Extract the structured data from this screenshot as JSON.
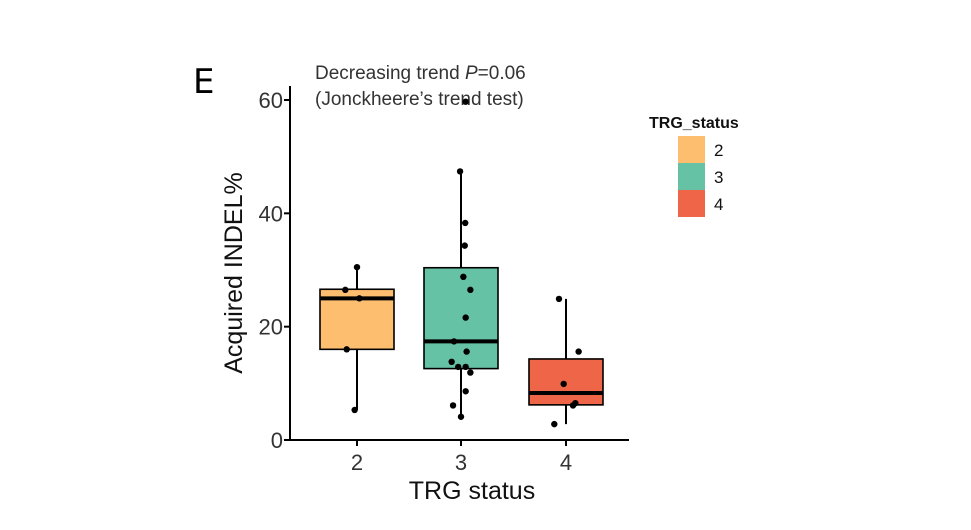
{
  "panel_label": "E",
  "chart_data": {
    "type": "boxplot",
    "annotation": {
      "line1_prefix": "Decreasing trend ",
      "line1_p": "P",
      "line1_value": "=0.06",
      "line2": "(Jonckheere’s trend test)"
    },
    "xlabel": "TRG status",
    "ylabel": "Acquired INDEL%",
    "ylim": [
      0,
      62
    ],
    "yticks": [
      0,
      20,
      40,
      60
    ],
    "categories": [
      "2",
      "3",
      "4"
    ],
    "legend": {
      "title": "TRG_status",
      "position": "right",
      "entries": [
        {
          "label": "2",
          "color": "#FDBF6F"
        },
        {
          "label": "3",
          "color": "#66C2A5"
        },
        {
          "label": "4",
          "color": "#EF6548"
        }
      ]
    },
    "boxes": [
      {
        "category": "2",
        "color": "#FDBF6F",
        "whisker_low": 5.3,
        "q1": 16.0,
        "median": 25.0,
        "q3": 26.6,
        "whisker_high": 30.5
      },
      {
        "category": "3",
        "color": "#66C2A5",
        "whisker_low": 4.1,
        "q1": 12.6,
        "median": 17.4,
        "q3": 30.4,
        "whisker_high": 47.4
      },
      {
        "category": "4",
        "color": "#EF6548",
        "whisker_low": 2.8,
        "q1": 6.2,
        "median": 8.3,
        "q3": 14.3,
        "whisker_high": 24.9
      }
    ],
    "points": [
      {
        "category": "2",
        "values": [
          30.5,
          26.5,
          25.0,
          16.0,
          5.3
        ],
        "jitter": [
          0.0,
          -0.25,
          0.05,
          -0.22,
          -0.05
        ]
      },
      {
        "category": "3",
        "values": [
          59.7,
          47.4,
          38.3,
          34.3,
          28.8,
          26.5,
          21.6,
          17.4,
          15.6,
          13.8,
          12.9,
          12.9,
          11.9,
          8.6,
          6.1,
          4.1
        ],
        "jitter": [
          0.1,
          -0.02,
          0.09,
          0.08,
          0.05,
          0.2,
          0.1,
          -0.15,
          0.12,
          -0.2,
          -0.06,
          0.1,
          0.2,
          0.1,
          -0.17,
          0.0
        ]
      },
      {
        "category": "4",
        "values": [
          24.9,
          15.6,
          9.9,
          6.5,
          6.1,
          2.8
        ],
        "jitter": [
          -0.15,
          0.27,
          -0.05,
          0.2,
          0.15,
          -0.25
        ]
      }
    ]
  }
}
